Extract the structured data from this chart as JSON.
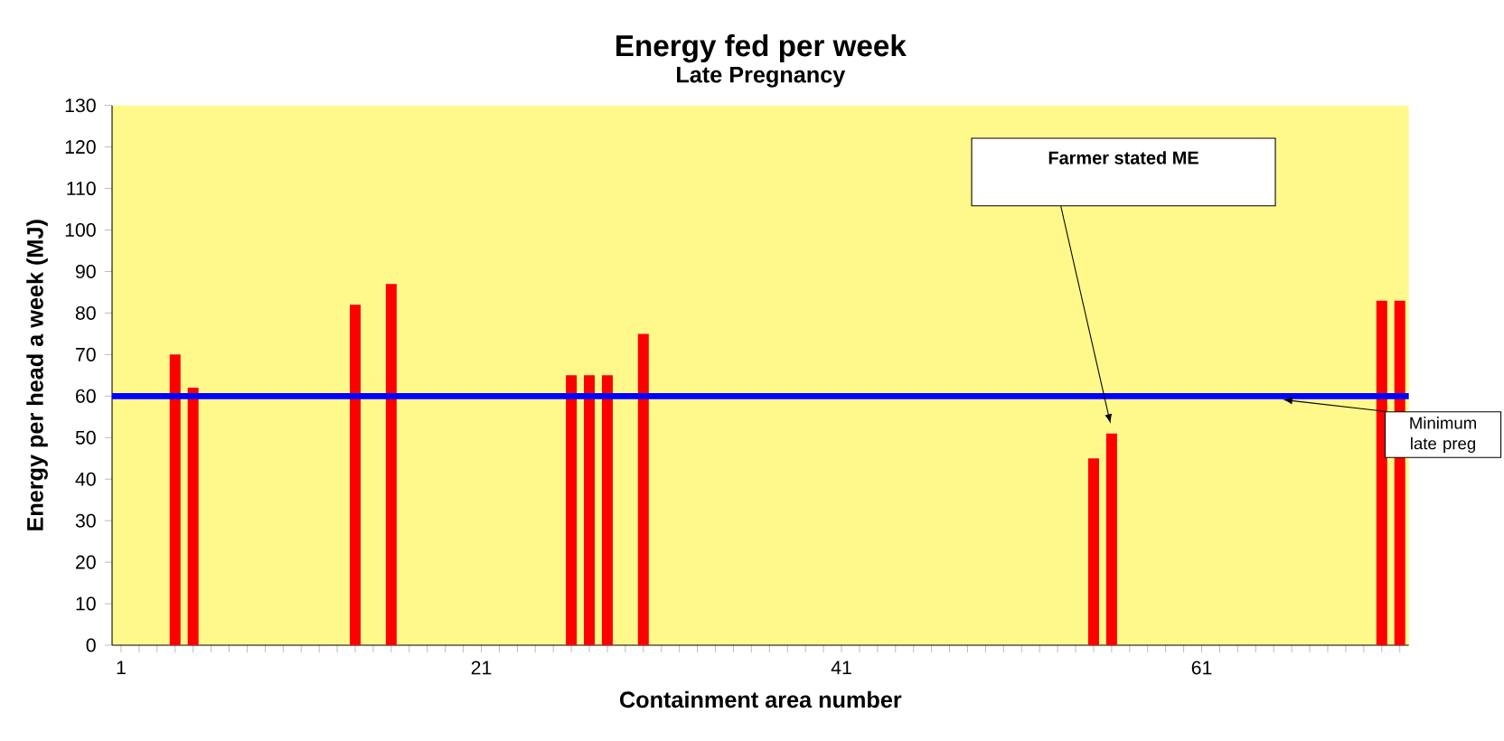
{
  "chart_data": {
    "type": "bar",
    "title": "Energy fed per week",
    "subtitle": "Late Pregnancy",
    "xlabel": "Containment area number",
    "ylabel": "Energy per head a week  (MJ)",
    "categories": [
      "1",
      null,
      null,
      null,
      null,
      null,
      null,
      null,
      null,
      null,
      null,
      null,
      null,
      null,
      null,
      null,
      null,
      null,
      null,
      null,
      "21",
      null,
      null,
      null,
      null,
      null,
      null,
      null,
      null,
      null,
      null,
      null,
      null,
      null,
      null,
      null,
      null,
      null,
      null,
      null,
      "41",
      null,
      null,
      null,
      null,
      null,
      null,
      null,
      null,
      null,
      null,
      null,
      null,
      null,
      null,
      null,
      null,
      null,
      null,
      null,
      "61",
      null,
      null,
      null,
      null,
      null,
      null,
      null,
      null,
      null,
      null,
      null
    ],
    "values": [
      null,
      null,
      null,
      70,
      62,
      null,
      null,
      null,
      null,
      null,
      null,
      null,
      null,
      82,
      null,
      87,
      null,
      null,
      null,
      null,
      null,
      null,
      null,
      null,
      null,
      65,
      65,
      65,
      null,
      75,
      null,
      null,
      null,
      null,
      null,
      null,
      null,
      null,
      null,
      null,
      null,
      null,
      null,
      null,
      null,
      null,
      null,
      null,
      null,
      null,
      null,
      null,
      null,
      null,
      45,
      51,
      null,
      null,
      null,
      null,
      null,
      null,
      null,
      null,
      null,
      null,
      null,
      null,
      null,
      null,
      83,
      83
    ],
    "color": "#ff0000",
    "ylim": [
      0,
      130
    ],
    "yticks": [
      0,
      10,
      20,
      30,
      40,
      50,
      60,
      70,
      80,
      90,
      100,
      110,
      120,
      130
    ],
    "ref_lines": [
      {
        "axis": "y",
        "value": 60,
        "label": "Minimum late preg",
        "color": "#0000ff"
      }
    ],
    "annotations": [
      "Farmer stated ME"
    ]
  }
}
